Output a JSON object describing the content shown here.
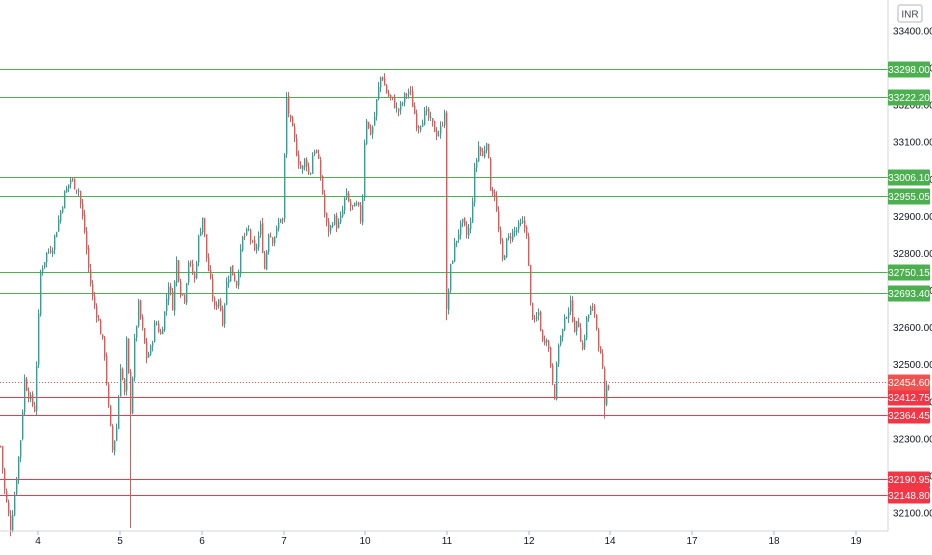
{
  "currency_badge": "INR",
  "chart_data": {
    "type": "candlestick",
    "title": "",
    "xlabel": "",
    "ylabel": "",
    "ylim": [
      32050,
      33480
    ],
    "x_ticks": [
      "4",
      "5",
      "6",
      "7",
      "10",
      "11",
      "12",
      "14",
      "17",
      "18",
      "19"
    ],
    "y_ticks": [
      "32100.00",
      "32200.00",
      "32300.00",
      "32400.00",
      "32500.00",
      "32600.00",
      "32700.00",
      "32800.00",
      "32900.00",
      "33000.00",
      "33100.00",
      "33200.00",
      "33300.00",
      "33400.00"
    ],
    "y_tick_values": [
      32100,
      32200,
      32300,
      32400,
      32500,
      32600,
      32700,
      32800,
      32900,
      33000,
      33100,
      33200,
      33300,
      33400
    ],
    "grid": false,
    "up_color": "#26a69a",
    "down_color": "#ef5350",
    "support_color": "#f23645",
    "resistance_color": "#4caf50",
    "current_price": {
      "label": "32454.60",
      "value": 32454.6,
      "color": "#ef5350"
    },
    "horizontal_levels": [
      {
        "label": "33298.00",
        "value": 33298.0,
        "kind": "resistance"
      },
      {
        "label": "33222.20",
        "value": 33222.2,
        "kind": "resistance"
      },
      {
        "label": "33006.10",
        "value": 33006.1,
        "kind": "resistance"
      },
      {
        "label": "32955.05",
        "value": 32955.05,
        "kind": "resistance"
      },
      {
        "label": "32750.15",
        "value": 32750.15,
        "kind": "resistance"
      },
      {
        "label": "32693.40",
        "value": 32693.4,
        "kind": "resistance"
      },
      {
        "label": "32412.75",
        "value": 32412.75,
        "kind": "support"
      },
      {
        "label": "32364.45",
        "value": 32364.45,
        "kind": "support"
      },
      {
        "label": "32190.95",
        "value": 32190.95,
        "kind": "support"
      },
      {
        "label": "32148.80",
        "value": 32148.8,
        "kind": "support"
      }
    ],
    "price_anchors": [
      [
        0,
        32280
      ],
      [
        4,
        32160
      ],
      [
        10,
        32060
      ],
      [
        14,
        32150
      ],
      [
        20,
        32300
      ],
      [
        24,
        32460
      ],
      [
        28,
        32420
      ],
      [
        34,
        32380
      ],
      [
        40,
        32750
      ],
      [
        46,
        32800
      ],
      [
        52,
        32820
      ],
      [
        58,
        32890
      ],
      [
        64,
        32960
      ],
      [
        70,
        33000
      ],
      [
        78,
        32970
      ],
      [
        84,
        32860
      ],
      [
        88,
        32760
      ],
      [
        92,
        32680
      ],
      [
        96,
        32640
      ],
      [
        100,
        32590
      ],
      [
        104,
        32530
      ],
      [
        108,
        32380
      ],
      [
        112,
        32270
      ],
      [
        116,
        32330
      ],
      [
        120,
        32500
      ],
      [
        124,
        32420
      ],
      [
        126,
        32560
      ],
      [
        130,
        32380
      ],
      [
        134,
        32560
      ],
      [
        138,
        32660
      ],
      [
        142,
        32590
      ],
      [
        146,
        32520
      ],
      [
        150,
        32540
      ],
      [
        155,
        32620
      ],
      [
        160,
        32580
      ],
      [
        164,
        32640
      ],
      [
        168,
        32720
      ],
      [
        172,
        32660
      ],
      [
        176,
        32780
      ],
      [
        180,
        32700
      ],
      [
        184,
        32680
      ],
      [
        188,
        32780
      ],
      [
        194,
        32730
      ],
      [
        198,
        32840
      ],
      [
        202,
        32900
      ],
      [
        206,
        32790
      ],
      [
        210,
        32720
      ],
      [
        214,
        32650
      ],
      [
        218,
        32680
      ],
      [
        222,
        32620
      ],
      [
        226,
        32720
      ],
      [
        230,
        32760
      ],
      [
        236,
        32720
      ],
      [
        242,
        32840
      ],
      [
        248,
        32860
      ],
      [
        254,
        32800
      ],
      [
        260,
        32870
      ],
      [
        264,
        32760
      ],
      [
        268,
        32860
      ],
      [
        272,
        32840
      ],
      [
        276,
        32860
      ],
      [
        280,
        32900
      ],
      [
        283,
        32880
      ],
      [
        285,
        33240
      ],
      [
        289,
        33160
      ],
      [
        293,
        33120
      ],
      [
        297,
        33060
      ],
      [
        301,
        33020
      ],
      [
        305,
        33060
      ],
      [
        309,
        33000
      ],
      [
        313,
        33090
      ],
      [
        317,
        33060
      ],
      [
        321,
        32990
      ],
      [
        325,
        32880
      ],
      [
        329,
        32860
      ],
      [
        333,
        32900
      ],
      [
        337,
        32870
      ],
      [
        341,
        32900
      ],
      [
        345,
        32960
      ],
      [
        349,
        32930
      ],
      [
        353,
        32920
      ],
      [
        357,
        32930
      ],
      [
        361,
        32880
      ],
      [
        365,
        33180
      ],
      [
        369,
        33120
      ],
      [
        373,
        33150
      ],
      [
        377,
        33230
      ],
      [
        381,
        33290
      ],
      [
        385,
        33240
      ],
      [
        389,
        33220
      ],
      [
        393,
        33210
      ],
      [
        397,
        33180
      ],
      [
        401,
        33200
      ],
      [
        405,
        33230
      ],
      [
        409,
        33240
      ],
      [
        413,
        33190
      ],
      [
        417,
        33140
      ],
      [
        421,
        33160
      ],
      [
        425,
        33180
      ],
      [
        429,
        33160
      ],
      [
        433,
        33140
      ],
      [
        437,
        33120
      ],
      [
        441,
        33140
      ],
      [
        444,
        33190
      ],
      [
        446,
        32640
      ],
      [
        450,
        32760
      ],
      [
        454,
        32820
      ],
      [
        458,
        32860
      ],
      [
        462,
        32880
      ],
      [
        466,
        32850
      ],
      [
        470,
        32880
      ],
      [
        474,
        33020
      ],
      [
        478,
        33090
      ],
      [
        482,
        33060
      ],
      [
        486,
        33110
      ],
      [
        490,
        32980
      ],
      [
        494,
        32960
      ],
      [
        498,
        32860
      ],
      [
        502,
        32780
      ],
      [
        506,
        32830
      ],
      [
        510,
        32850
      ],
      [
        514,
        32860
      ],
      [
        518,
        32870
      ],
      [
        522,
        32880
      ],
      [
        526,
        32860
      ],
      [
        530,
        32660
      ],
      [
        534,
        32610
      ],
      [
        538,
        32640
      ],
      [
        542,
        32560
      ],
      [
        546,
        32580
      ],
      [
        550,
        32500
      ],
      [
        554,
        32420
      ],
      [
        558,
        32560
      ],
      [
        562,
        32590
      ],
      [
        566,
        32640
      ],
      [
        570,
        32660
      ],
      [
        574,
        32600
      ],
      [
        578,
        32610
      ],
      [
        582,
        32540
      ],
      [
        586,
        32620
      ],
      [
        590,
        32650
      ],
      [
        594,
        32640
      ],
      [
        598,
        32560
      ],
      [
        602,
        32480
      ],
      [
        604,
        32380
      ],
      [
        606,
        32440
      ],
      [
        609,
        32454
      ]
    ]
  }
}
